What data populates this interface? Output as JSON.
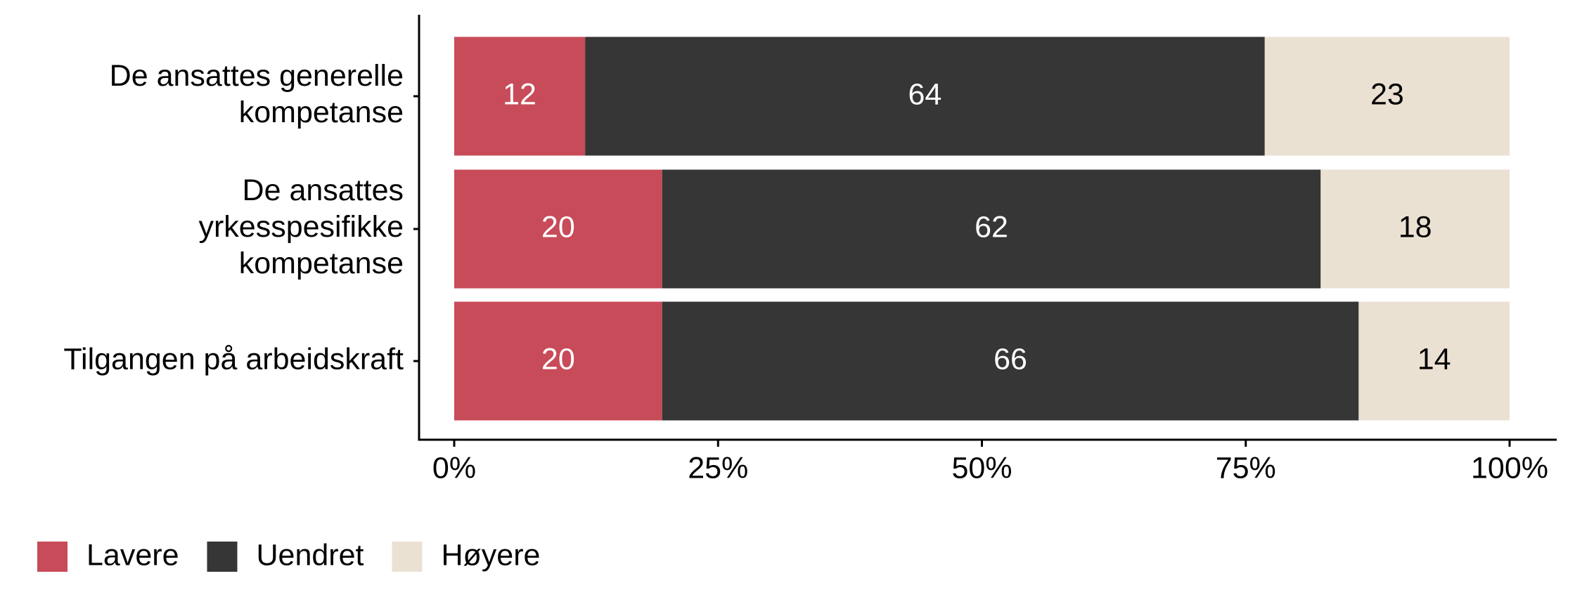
{
  "chart_data": {
    "type": "stacked-barh",
    "categories": [
      "De ansattes generelle\nkompetanse",
      "De ansattes\nyrkesspesifikke\nkompetanse",
      "Tilgangen på arbeidskraft"
    ],
    "series": [
      {
        "name": "Lavere",
        "color": "#c84b5a",
        "label_color": "#ffffff",
        "values": [
          12.4,
          19.7,
          19.7
        ],
        "value_labels": [
          "12",
          "20",
          "20"
        ]
      },
      {
        "name": "Uendret",
        "color": "#363636",
        "label_color": "#ffffff",
        "values": [
          64.4,
          62.4,
          66.0
        ],
        "value_labels": [
          "64",
          "62",
          "66"
        ]
      },
      {
        "name": "Høyere",
        "color": "#ebe1d3",
        "label_color": "#000000",
        "values": [
          23.2,
          17.9,
          14.3
        ],
        "value_labels": [
          "23",
          "18",
          "14"
        ]
      }
    ],
    "xlim": [
      0,
      100
    ],
    "xticks": [
      {
        "value": 0,
        "label": "0%"
      },
      {
        "value": 25,
        "label": "25%"
      },
      {
        "value": 50,
        "label": "50%"
      },
      {
        "value": 75,
        "label": "75%"
      },
      {
        "value": 100,
        "label": "100%"
      }
    ],
    "legend": "bottom-left"
  }
}
